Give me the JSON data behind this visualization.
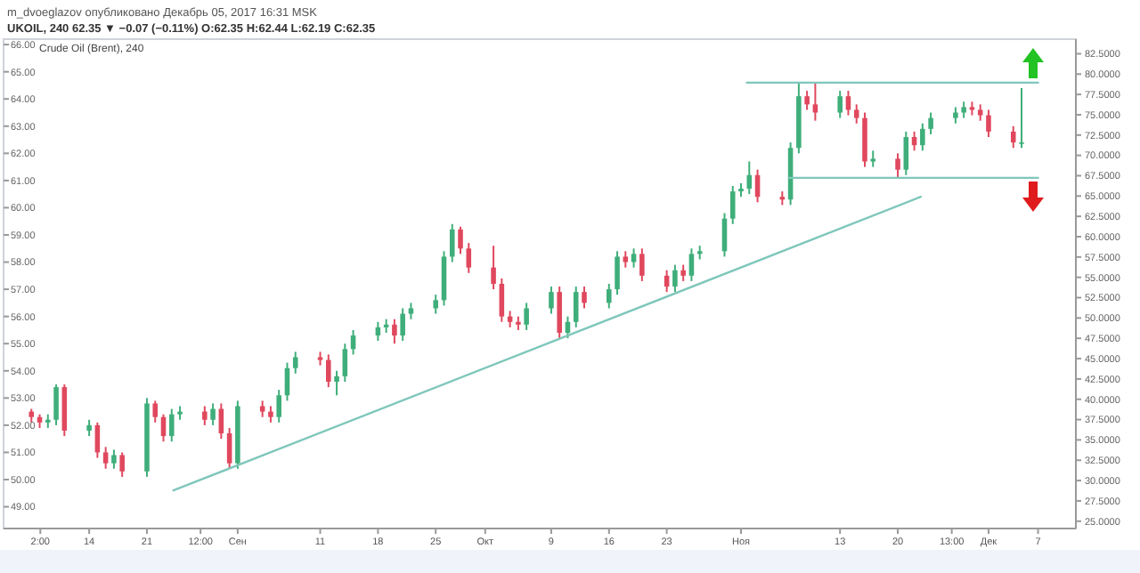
{
  "chart_data": {
    "type": "candlestick",
    "title": "m_dvoeglazov опубликовано Декабрь 05, 2017 16:31 MSK",
    "subtitle": "UKOIL, 240 62.35 ▼ −0.07 (−0.11%) O:62.35 H:62.44 L:62.19 C:62.35",
    "annotations": [
      "Crude Oil (Brent), 240"
    ],
    "x": [
      "2017-08-07",
      "2017-08-08",
      "2017-08-09",
      "2017-08-10",
      "2017-08-11",
      "2017-08-14",
      "2017-08-15",
      "2017-08-16",
      "2017-08-17",
      "2017-08-18",
      "2017-08-21",
      "2017-08-22",
      "2017-08-23",
      "2017-08-24",
      "2017-08-25",
      "2017-08-28",
      "2017-08-29",
      "2017-08-30",
      "2017-08-31",
      "2017-09-01",
      "2017-09-04",
      "2017-09-05",
      "2017-09-06",
      "2017-09-07",
      "2017-09-08",
      "2017-09-11",
      "2017-09-12",
      "2017-09-13",
      "2017-09-14",
      "2017-09-15",
      "2017-09-18",
      "2017-09-19",
      "2017-09-20",
      "2017-09-21",
      "2017-09-22",
      "2017-09-25",
      "2017-09-26",
      "2017-09-27",
      "2017-09-28",
      "2017-09-29",
      "2017-10-02",
      "2017-10-03",
      "2017-10-04",
      "2017-10-05",
      "2017-10-06",
      "2017-10-09",
      "2017-10-10",
      "2017-10-11",
      "2017-10-12",
      "2017-10-13",
      "2017-10-16",
      "2017-10-17",
      "2017-10-18",
      "2017-10-19",
      "2017-10-20",
      "2017-10-23",
      "2017-10-24",
      "2017-10-25",
      "2017-10-26",
      "2017-10-27",
      "2017-10-30",
      "2017-10-31",
      "2017-11-01",
      "2017-11-02",
      "2017-11-03",
      "2017-11-06",
      "2017-11-07",
      "2017-11-08",
      "2017-11-09",
      "2017-11-10",
      "2017-11-13",
      "2017-11-14",
      "2017-11-15",
      "2017-11-16",
      "2017-11-17",
      "2017-11-20",
      "2017-11-21",
      "2017-11-22",
      "2017-11-23",
      "2017-11-24",
      "2017-11-27",
      "2017-11-28",
      "2017-11-29",
      "2017-11-30",
      "2017-12-01",
      "2017-12-04",
      "2017-12-05"
    ],
    "ohlc": [
      [
        52.5,
        52.6,
        52.1,
        52.3
      ],
      [
        52.3,
        52.4,
        51.9,
        52.1
      ],
      [
        52.1,
        52.4,
        51.9,
        52.2
      ],
      [
        52.2,
        53.5,
        52.0,
        53.4
      ],
      [
        53.4,
        53.5,
        51.6,
        51.8
      ],
      [
        51.8,
        52.2,
        51.6,
        52.0
      ],
      [
        52.0,
        52.1,
        50.8,
        51.0
      ],
      [
        51.0,
        51.2,
        50.4,
        50.6
      ],
      [
        50.6,
        51.1,
        50.4,
        50.9
      ],
      [
        50.9,
        51.0,
        50.1,
        50.3
      ],
      [
        50.3,
        53.0,
        50.1,
        52.8
      ],
      [
        52.8,
        52.9,
        52.1,
        52.3
      ],
      [
        52.3,
        52.4,
        51.4,
        51.6
      ],
      [
        51.6,
        52.6,
        51.4,
        52.4
      ],
      [
        52.4,
        52.7,
        52.2,
        52.5
      ],
      [
        52.5,
        52.7,
        52.0,
        52.2
      ],
      [
        52.2,
        52.8,
        52.0,
        52.6
      ],
      [
        52.6,
        52.8,
        51.5,
        51.7
      ],
      [
        51.7,
        51.9,
        50.4,
        50.6
      ],
      [
        50.6,
        52.9,
        50.4,
        52.7
      ],
      [
        52.7,
        52.9,
        52.3,
        52.5
      ],
      [
        52.5,
        52.7,
        52.1,
        52.3
      ],
      [
        52.3,
        53.3,
        52.1,
        53.1
      ],
      [
        53.1,
        54.3,
        52.9,
        54.1
      ],
      [
        54.1,
        54.7,
        53.9,
        54.5
      ],
      [
        54.5,
        54.7,
        54.2,
        54.4
      ],
      [
        54.4,
        54.6,
        53.4,
        53.6
      ],
      [
        53.6,
        54.0,
        53.1,
        53.8
      ],
      [
        53.8,
        55.0,
        53.6,
        54.8
      ],
      [
        54.8,
        55.5,
        54.6,
        55.3
      ],
      [
        55.3,
        55.8,
        55.1,
        55.6
      ],
      [
        55.6,
        55.9,
        55.4,
        55.7
      ],
      [
        55.7,
        55.9,
        55.0,
        55.3
      ],
      [
        55.3,
        56.3,
        55.1,
        56.1
      ],
      [
        56.1,
        56.5,
        55.9,
        56.3
      ],
      [
        56.3,
        56.8,
        56.1,
        56.6
      ],
      [
        56.6,
        58.4,
        56.4,
        58.2
      ],
      [
        58.2,
        59.4,
        58.0,
        59.2
      ],
      [
        59.2,
        59.3,
        58.3,
        58.5
      ],
      [
        58.5,
        58.7,
        57.6,
        57.8
      ],
      [
        57.8,
        58.6,
        57.0,
        57.2
      ],
      [
        57.2,
        57.4,
        55.8,
        56.0
      ],
      [
        56.0,
        56.2,
        55.6,
        55.8
      ],
      [
        55.8,
        56.0,
        55.5,
        55.7
      ],
      [
        55.7,
        56.5,
        55.5,
        56.3
      ],
      [
        56.3,
        57.1,
        56.1,
        56.9
      ],
      [
        56.9,
        57.1,
        55.2,
        55.4
      ],
      [
        55.4,
        56.0,
        55.2,
        55.8
      ],
      [
        55.8,
        57.1,
        55.6,
        56.9
      ],
      [
        56.9,
        57.1,
        56.3,
        56.5
      ],
      [
        56.5,
        57.2,
        56.3,
        57.0
      ],
      [
        57.0,
        58.4,
        56.8,
        58.2
      ],
      [
        58.2,
        58.4,
        57.8,
        58.0
      ],
      [
        58.0,
        58.5,
        57.8,
        58.3
      ],
      [
        58.3,
        58.5,
        57.3,
        57.5
      ],
      [
        57.5,
        57.7,
        56.9,
        57.1
      ],
      [
        57.1,
        57.9,
        56.9,
        57.7
      ],
      [
        57.7,
        57.9,
        57.3,
        57.5
      ],
      [
        57.5,
        58.5,
        57.3,
        58.3
      ],
      [
        58.3,
        58.6,
        58.1,
        58.4
      ],
      [
        58.4,
        59.8,
        58.2,
        59.6
      ],
      [
        59.6,
        60.8,
        59.4,
        60.6
      ],
      [
        60.6,
        60.9,
        60.4,
        60.7
      ],
      [
        60.7,
        61.7,
        60.5,
        61.2
      ],
      [
        61.2,
        61.4,
        60.2,
        60.4
      ],
      [
        60.4,
        60.6,
        60.1,
        60.3
      ],
      [
        60.3,
        62.4,
        60.1,
        62.2
      ],
      [
        62.2,
        64.6,
        62.0,
        64.1
      ],
      [
        64.1,
        64.3,
        63.6,
        63.8
      ],
      [
        63.8,
        64.6,
        63.2,
        63.5
      ],
      [
        63.5,
        64.3,
        63.3,
        64.1
      ],
      [
        64.1,
        64.3,
        63.4,
        63.6
      ],
      [
        63.6,
        63.8,
        63.1,
        63.3
      ],
      [
        63.3,
        63.5,
        61.5,
        61.7
      ],
      [
        61.7,
        62.1,
        61.5,
        61.8
      ],
      [
        61.8,
        62.0,
        61.1,
        61.4
      ],
      [
        61.4,
        62.8,
        61.2,
        62.6
      ],
      [
        62.6,
        62.8,
        62.1,
        62.3
      ],
      [
        62.3,
        63.1,
        62.1,
        62.9
      ],
      [
        62.9,
        63.5,
        62.7,
        63.3
      ],
      [
        63.3,
        63.7,
        63.1,
        63.5
      ],
      [
        63.5,
        63.9,
        63.3,
        63.7
      ],
      [
        63.7,
        63.9,
        63.4,
        63.6
      ],
      [
        63.6,
        63.8,
        63.2,
        63.4
      ],
      [
        63.4,
        63.6,
        62.6,
        62.8
      ],
      [
        62.8,
        63.0,
        62.2,
        62.4
      ],
      [
        62.4,
        64.4,
        62.2,
        62.4
      ]
    ],
    "series": [
      {
        "type": "line",
        "color": "#7fc7bb",
        "x": [
          "2017-08-24T05:00",
          "2017-11-22T19:00"
        ],
        "values": [
          49.6,
          60.4
        ]
      },
      {
        "type": "line",
        "color": "#7fc7bb",
        "x": [
          "2017-11-01T17:00",
          "2017-12-07"
        ],
        "values": [
          64.6,
          64.6
        ]
      },
      {
        "type": "line",
        "color": "#7fc7bb",
        "x": [
          "2017-11-06T19:00",
          "2017-12-07"
        ],
        "values": [
          61.1,
          61.1
        ]
      }
    ],
    "xlim": [
      "2017-08-03T15:00",
      "2017-12-11T14:00"
    ],
    "xticks": [
      {
        "value": "2017-08-08T02:00",
        "label": "2:00"
      },
      {
        "value": "2017-08-14",
        "label": "14"
      },
      {
        "value": "2017-08-21",
        "label": "21"
      },
      {
        "value": "2017-08-27T12:00",
        "label": "12:00"
      },
      {
        "value": "2017-09-01",
        "label": "Сен"
      },
      {
        "value": "2017-09-11",
        "label": "11"
      },
      {
        "value": "2017-09-18",
        "label": "18"
      },
      {
        "value": "2017-09-25",
        "label": "25"
      },
      {
        "value": "2017-10-01",
        "label": "Окт"
      },
      {
        "value": "2017-10-09",
        "label": "9"
      },
      {
        "value": "2017-10-16",
        "label": "16"
      },
      {
        "value": "2017-10-23",
        "label": "23"
      },
      {
        "value": "2017-11-01",
        "label": "Ноя"
      },
      {
        "value": "2017-11-13",
        "label": "13"
      },
      {
        "value": "2017-11-20",
        "label": "20"
      },
      {
        "value": "2017-11-26T13:00",
        "label": "13:00"
      },
      {
        "value": "2017-12-01",
        "label": "Дек"
      },
      {
        "value": "2017-12-07",
        "label": "7"
      }
    ],
    "ylim": [
      48.2,
      66.2
    ],
    "yticks": [
      {
        "value": 49,
        "label": "49.00"
      },
      {
        "value": 50,
        "label": "50.00"
      },
      {
        "value": 51,
        "label": "51.00"
      },
      {
        "value": 52,
        "label": "52.00"
      },
      {
        "value": 53,
        "label": "53.00"
      },
      {
        "value": 54,
        "label": "54.00"
      },
      {
        "value": 55,
        "label": "55.00"
      },
      {
        "value": 56,
        "label": "56.00"
      },
      {
        "value": 57,
        "label": "57.00"
      },
      {
        "value": 58,
        "label": "58.00"
      },
      {
        "value": 59,
        "label": "59.00"
      },
      {
        "value": 60,
        "label": "60.00"
      },
      {
        "value": 61,
        "label": "61.00"
      },
      {
        "value": 62,
        "label": "62.00"
      },
      {
        "value": 63,
        "label": "63.00"
      },
      {
        "value": 64,
        "label": "64.00"
      },
      {
        "value": 65,
        "label": "65.00"
      },
      {
        "value": 66,
        "label": "66.00"
      }
    ],
    "y2lim": [
      24.1,
      84.3
    ],
    "y2ticks": [
      {
        "value": 25,
        "label": "25.0000"
      },
      {
        "value": 27.5,
        "label": "27.5000"
      },
      {
        "value": 30,
        "label": "30.0000"
      },
      {
        "value": 32.5,
        "label": "32.5000"
      },
      {
        "value": 35,
        "label": "35.0000"
      },
      {
        "value": 37.5,
        "label": "37.5000"
      },
      {
        "value": 40,
        "label": "40.0000"
      },
      {
        "value": 42.5,
        "label": "42.5000"
      },
      {
        "value": 45,
        "label": "45.0000"
      },
      {
        "value": 47.5,
        "label": "47.5000"
      },
      {
        "value": 50,
        "label": "50.0000"
      },
      {
        "value": 52.5,
        "label": "52.5000"
      },
      {
        "value": 55,
        "label": "55.0000"
      },
      {
        "value": 57.5,
        "label": "57.5000"
      },
      {
        "value": 60,
        "label": "60.0000"
      },
      {
        "value": 62.5,
        "label": "62.5000"
      },
      {
        "value": 65,
        "label": "65.0000"
      },
      {
        "value": 67.5,
        "label": "67.5000"
      },
      {
        "value": 70,
        "label": "70.0000"
      },
      {
        "value": 72.5,
        "label": "72.5000"
      },
      {
        "value": 75,
        "label": "75.0000"
      },
      {
        "value": 77.5,
        "label": "77.5000"
      },
      {
        "value": 80,
        "label": "80.0000"
      },
      {
        "value": 82.5,
        "label": "82.5000"
      }
    ],
    "grid": false
  }
}
